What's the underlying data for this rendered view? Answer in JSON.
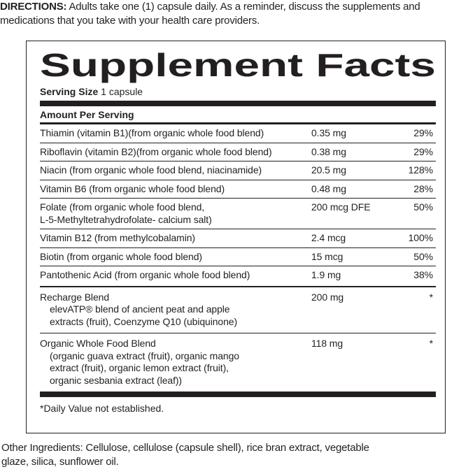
{
  "directions": {
    "label": "DIRECTIONS:",
    "lines": [
      "Adults take one (1) capsule daily. As a reminder, discuss the supplements and",
      "medications that you take with your health care providers."
    ]
  },
  "facts": {
    "title": "Supplement Facts",
    "serving_size": {
      "label": "Serving Size",
      "value": "1 capsule"
    },
    "amount_header": "Amount Per Serving",
    "nutrients": [
      {
        "name": [
          "Thiamin (vitamin B1)(from organic whole food blend)"
        ],
        "amount": "0.35 mg",
        "dv": "29%"
      },
      {
        "name": [
          "Riboflavin (vitamin B2)(from organic whole food blend)"
        ],
        "amount": "0.38 mg",
        "dv": "29%"
      },
      {
        "name": [
          "Niacin (from organic whole food blend, niacinamide)"
        ],
        "amount": "20.5 mg",
        "dv": "128%"
      },
      {
        "name": [
          "Vitamin B6 (from organic whole food blend)"
        ],
        "amount": "0.48 mg",
        "dv": "28%"
      },
      {
        "name": [
          "Folate (from organic whole food blend,",
          "L-5-Methyltetrahydrofolate- calcium salt)"
        ],
        "amount": "200 mcg DFE",
        "dv": "50%"
      },
      {
        "name": [
          "Vitamin B12 (from methylcobalamin)"
        ],
        "amount": "2.4 mcg",
        "dv": "100%"
      },
      {
        "name": [
          "Biotin (from organic whole food blend)"
        ],
        "amount": "15 mcg",
        "dv": "50%"
      },
      {
        "name": [
          "Pantothenic Acid (from organic whole food blend)"
        ],
        "amount": "1.9 mg",
        "dv": "38%"
      }
    ],
    "blends": [
      {
        "name": "Recharge Blend",
        "description": [
          "elevATP® blend of ancient peat and apple",
          "extracts (fruit), Coenzyme Q10 (ubiquinone)"
        ],
        "amount": "200 mg",
        "dv": "*"
      },
      {
        "name": "Organic Whole Food Blend",
        "description": [
          "(organic guava extract (fruit), organic mango",
          "extract (fruit), organic lemon extract (fruit),",
          "organic sesbania extract (leaf))"
        ],
        "amount": "118 mg",
        "dv": "*"
      }
    ],
    "footnote": "*Daily Value not established."
  },
  "other_ingredients": {
    "lines": [
      "Other Ingredients: Cellulose, cellulose (capsule shell), rice bran extract, vegetable",
      "glaze, silica, sunflower oil."
    ]
  }
}
